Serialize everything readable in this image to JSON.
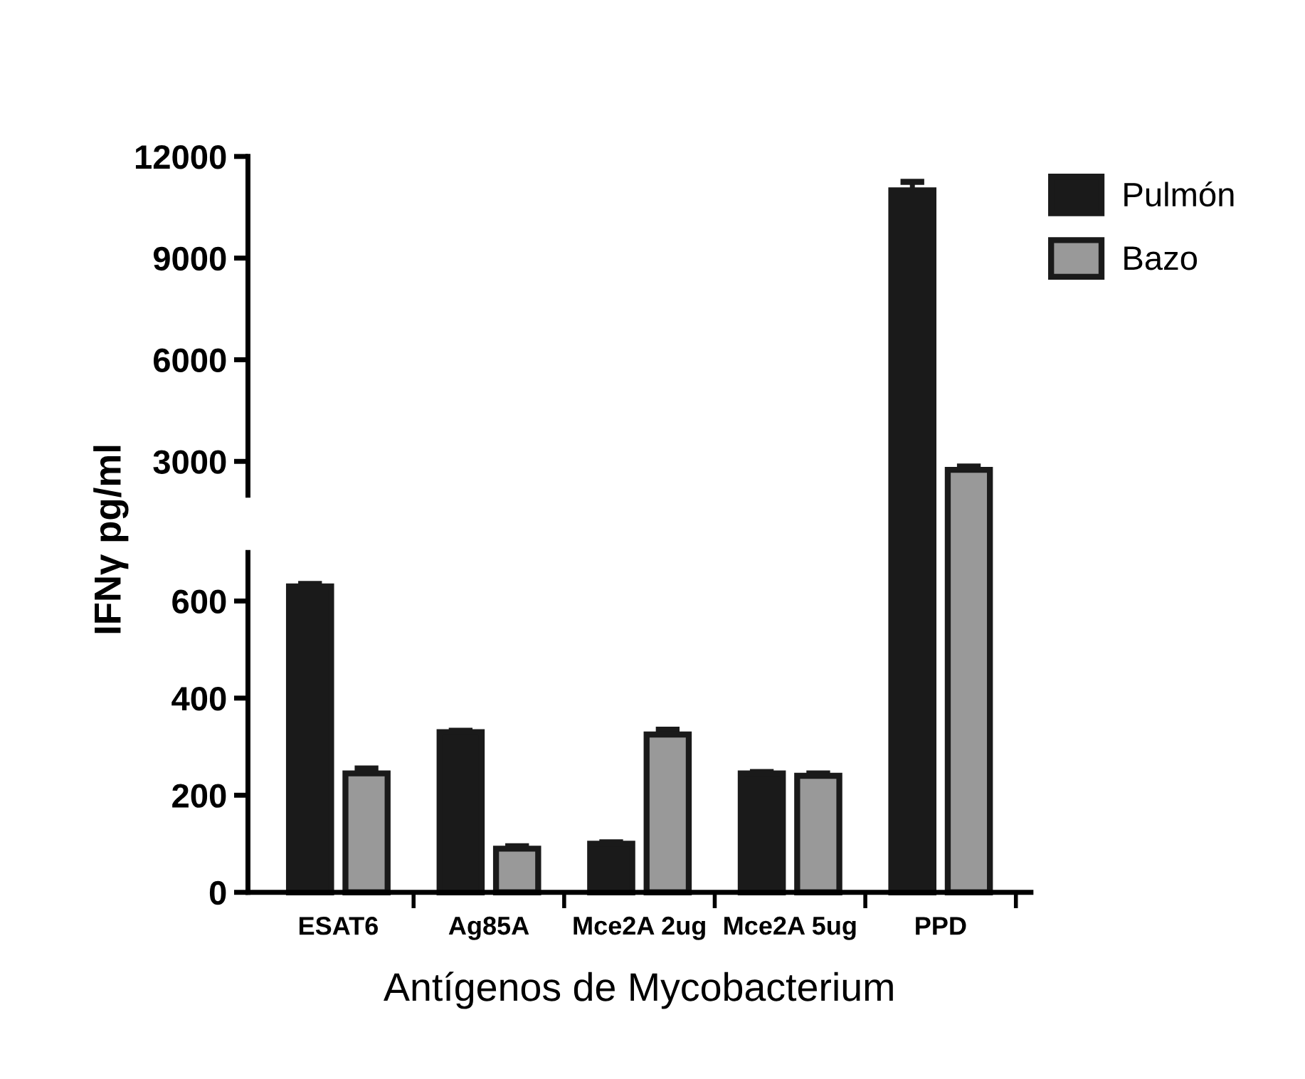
{
  "chart_data": [
    {
      "type": "bar",
      "ylabel": "IFNγ pg/ml",
      "ylim": [
        2000,
        12000
      ],
      "yticks": [
        3000,
        6000,
        9000,
        12000
      ],
      "legend": "top right",
      "grid": false,
      "series": [
        {
          "name": "Pulmón",
          "color": "#1a1a1a",
          "values": [
            null,
            null,
            null,
            null,
            11000
          ],
          "errors": [
            null,
            null,
            null,
            null,
            250
          ]
        },
        {
          "name": "Bazo",
          "color": "#999999",
          "values": [
            null,
            null,
            null,
            null,
            2750
          ],
          "errors": [
            null,
            null,
            null,
            null,
            100
          ]
        }
      ]
    },
    {
      "type": "bar",
      "xlabel": "Antígenos de Mycobacterium",
      "categories": [
        "ESAT6",
        "Ag85A",
        "Mce2A 2ug",
        "Mce2A 5ug",
        "PPD"
      ],
      "ylim": [
        0,
        700
      ],
      "yticks": [
        0,
        200,
        400,
        600
      ],
      "grid": false,
      "series": [
        {
          "color": "#1a1a1a",
          "values": [
            630,
            330,
            100,
            245,
            null
          ],
          "errors": [
            5,
            3,
            3,
            3,
            null
          ]
        },
        {
          "color": "#999999",
          "values": [
            245,
            90,
            325,
            240,
            null
          ],
          "errors": [
            10,
            5,
            10,
            5,
            null
          ]
        }
      ]
    }
  ]
}
